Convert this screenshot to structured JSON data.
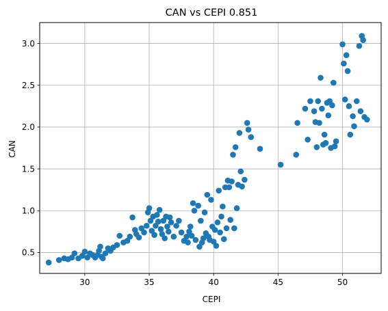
{
  "chart_data": {
    "type": "scatter",
    "title": "CAN vs CEPI  0.851",
    "xlabel": "CEPI",
    "ylabel": "CAN",
    "xlim": [
      26.5,
      53
    ],
    "ylim": [
      0.25,
      3.25
    ],
    "grid": true,
    "marker_color": "#1f77b4",
    "xticks": [
      30,
      35,
      40,
      45,
      50
    ],
    "yticks": [
      0.5,
      1.0,
      1.5,
      2.0,
      2.5,
      3.0
    ],
    "xtick_labels": [
      "30",
      "35",
      "40",
      "45",
      "50"
    ],
    "ytick_labels": [
      "0.5",
      "1.0",
      "1.5",
      "2.0",
      "2.5",
      "3.0"
    ],
    "points": [
      [
        27.2,
        0.38
      ],
      [
        28.0,
        0.41
      ],
      [
        28.4,
        0.43
      ],
      [
        28.7,
        0.42
      ],
      [
        29.0,
        0.44
      ],
      [
        29.2,
        0.49
      ],
      [
        29.5,
        0.43
      ],
      [
        29.8,
        0.46
      ],
      [
        30.0,
        0.51
      ],
      [
        30.2,
        0.44
      ],
      [
        30.4,
        0.49
      ],
      [
        30.6,
        0.47
      ],
      [
        30.8,
        0.44
      ],
      [
        31.0,
        0.47
      ],
      [
        31.1,
        0.52
      ],
      [
        31.2,
        0.57
      ],
      [
        31.3,
        0.45
      ],
      [
        31.4,
        0.43
      ],
      [
        31.6,
        0.49
      ],
      [
        31.8,
        0.55
      ],
      [
        32.0,
        0.52
      ],
      [
        32.2,
        0.56
      ],
      [
        32.5,
        0.59
      ],
      [
        32.7,
        0.7
      ],
      [
        33.0,
        0.62
      ],
      [
        33.3,
        0.64
      ],
      [
        33.5,
        0.69
      ],
      [
        33.7,
        0.92
      ],
      [
        33.9,
        0.77
      ],
      [
        34.0,
        0.72
      ],
      [
        34.2,
        0.68
      ],
      [
        34.4,
        0.79
      ],
      [
        34.6,
        0.74
      ],
      [
        34.8,
        0.82
      ],
      [
        34.9,
        0.98
      ],
      [
        35.0,
        1.03
      ],
      [
        35.1,
        0.88
      ],
      [
        35.2,
        0.76
      ],
      [
        35.3,
        0.93
      ],
      [
        35.4,
        0.71
      ],
      [
        35.5,
        0.82
      ],
      [
        35.6,
        0.95
      ],
      [
        35.7,
        0.87
      ],
      [
        35.8,
        1.01
      ],
      [
        35.9,
        0.78
      ],
      [
        36.0,
        0.72
      ],
      [
        36.1,
        0.88
      ],
      [
        36.2,
        0.67
      ],
      [
        36.3,
        0.93
      ],
      [
        36.4,
        0.81
      ],
      [
        36.5,
        0.75
      ],
      [
        36.6,
        0.92
      ],
      [
        36.7,
        0.86
      ],
      [
        36.9,
        0.69
      ],
      [
        37.1,
        0.82
      ],
      [
        37.3,
        0.88
      ],
      [
        37.5,
        0.74
      ],
      [
        37.7,
        0.64
      ],
      [
        37.9,
        0.69
      ],
      [
        38.0,
        0.62
      ],
      [
        38.1,
        0.75
      ],
      [
        38.2,
        0.81
      ],
      [
        38.3,
        0.7
      ],
      [
        38.4,
        1.09
      ],
      [
        38.5,
        1.0
      ],
      [
        38.6,
        0.65
      ],
      [
        38.8,
        1.06
      ],
      [
        38.9,
        0.57
      ],
      [
        39.0,
        0.88
      ],
      [
        39.1,
        0.62
      ],
      [
        39.2,
        0.67
      ],
      [
        39.3,
        0.98
      ],
      [
        39.4,
        0.73
      ],
      [
        39.5,
        1.19
      ],
      [
        39.6,
        0.69
      ],
      [
        39.7,
        0.65
      ],
      [
        39.8,
        1.13
      ],
      [
        39.9,
        0.81
      ],
      [
        40.0,
        0.63
      ],
      [
        40.1,
        0.77
      ],
      [
        40.2,
        0.58
      ],
      [
        40.3,
        0.86
      ],
      [
        40.4,
        1.24
      ],
      [
        40.5,
        0.74
      ],
      [
        40.6,
        0.93
      ],
      [
        40.7,
        1.05
      ],
      [
        40.8,
        0.66
      ],
      [
        40.9,
        1.28
      ],
      [
        41.0,
        0.79
      ],
      [
        41.1,
        1.36
      ],
      [
        41.2,
        1.28
      ],
      [
        41.3,
        0.89
      ],
      [
        41.4,
        1.35
      ],
      [
        41.5,
        1.67
      ],
      [
        41.6,
        0.79
      ],
      [
        41.7,
        1.76
      ],
      [
        41.8,
        1.03
      ],
      [
        41.9,
        1.31
      ],
      [
        42.0,
        1.93
      ],
      [
        42.1,
        1.47
      ],
      [
        42.2,
        1.29
      ],
      [
        42.4,
        1.37
      ],
      [
        42.6,
        2.05
      ],
      [
        42.7,
        1.97
      ],
      [
        42.9,
        1.88
      ],
      [
        43.6,
        1.74
      ],
      [
        45.2,
        1.55
      ],
      [
        46.4,
        1.67
      ],
      [
        46.5,
        2.05
      ],
      [
        47.1,
        2.22
      ],
      [
        47.3,
        1.85
      ],
      [
        47.5,
        2.31
      ],
      [
        47.8,
        2.19
      ],
      [
        47.9,
        2.06
      ],
      [
        48.0,
        1.76
      ],
      [
        48.1,
        2.31
      ],
      [
        48.2,
        2.05
      ],
      [
        48.3,
        2.59
      ],
      [
        48.4,
        2.22
      ],
      [
        48.5,
        1.79
      ],
      [
        48.6,
        1.91
      ],
      [
        48.7,
        1.81
      ],
      [
        48.8,
        2.29
      ],
      [
        48.9,
        2.14
      ],
      [
        49.0,
        2.31
      ],
      [
        49.1,
        1.75
      ],
      [
        49.2,
        2.26
      ],
      [
        49.3,
        2.53
      ],
      [
        49.4,
        1.77
      ],
      [
        49.5,
        1.83
      ],
      [
        50.0,
        2.99
      ],
      [
        50.1,
        2.76
      ],
      [
        50.2,
        2.33
      ],
      [
        50.3,
        2.86
      ],
      [
        50.4,
        2.67
      ],
      [
        50.5,
        2.25
      ],
      [
        50.6,
        1.91
      ],
      [
        50.8,
        2.13
      ],
      [
        50.9,
        2.01
      ],
      [
        51.1,
        2.31
      ],
      [
        51.3,
        2.97
      ],
      [
        51.4,
        2.19
      ],
      [
        51.5,
        3.09
      ],
      [
        51.6,
        3.04
      ],
      [
        51.7,
        2.12
      ],
      [
        51.9,
        2.09
      ]
    ]
  }
}
